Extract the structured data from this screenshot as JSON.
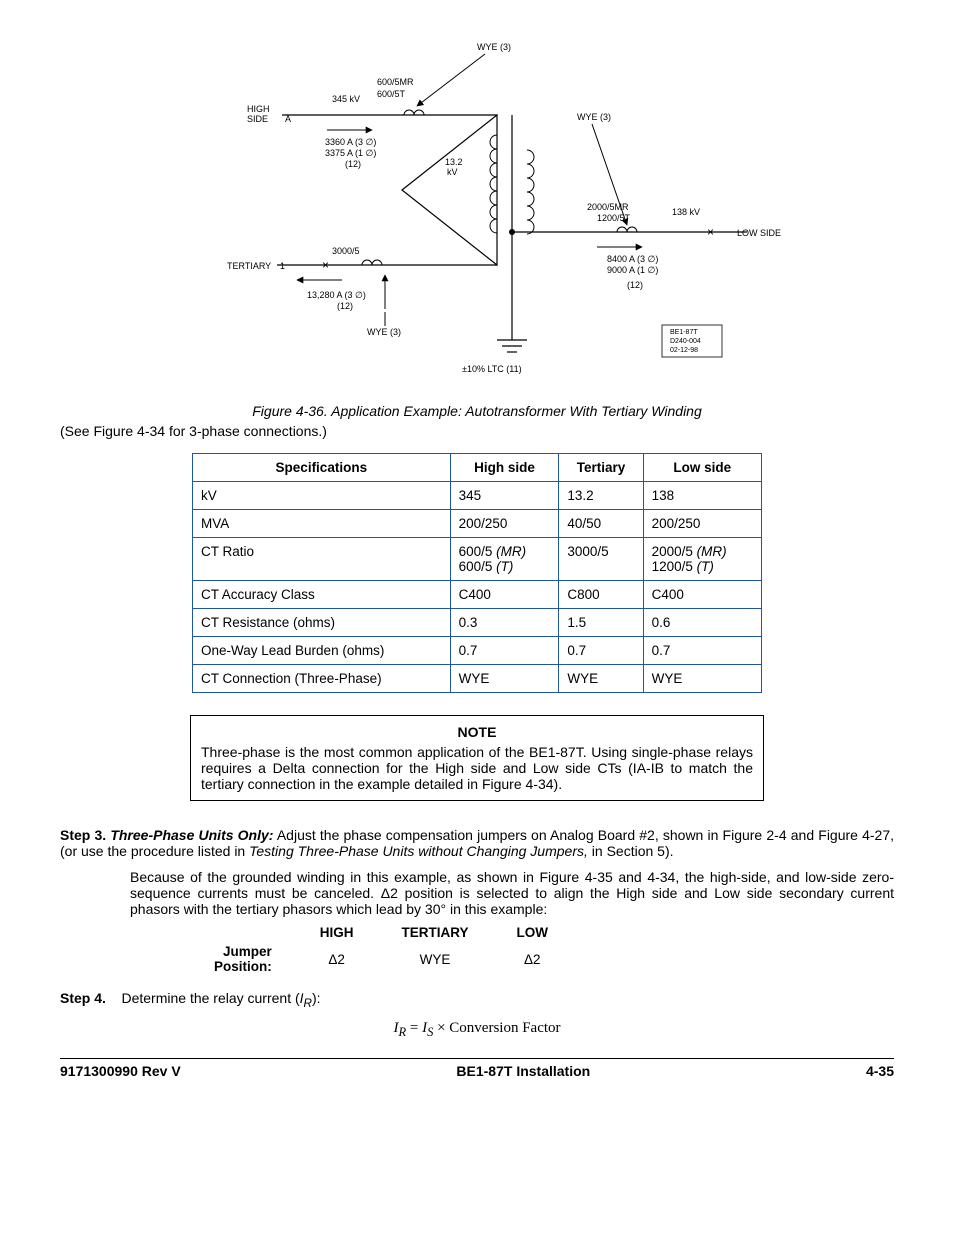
{
  "diagram": {
    "labels": {
      "wye_top": "WYE (3)",
      "wye_right": "WYE (3)",
      "wye_bottom": "WYE (3)",
      "high_side": "HIGH",
      "high_side2": "SIDE",
      "low_side": "LOW SIDE",
      "tertiary": "TERTIARY",
      "A_letter": "A",
      "one_letter": "1",
      "kv_345": "345 kV",
      "mr_600": "600/5MR",
      "t_600": "600/5T",
      "curr_3360": "3360 A (3 ∅)",
      "curr_3375": "3375 A (1 ∅)",
      "idx12a": "(12)",
      "kv_13_2a": "13.2",
      "kv_13_2b": "kV",
      "mr_2000": "2000/5MR",
      "t_1200": "1200/5T",
      "kv_138": "138 kV",
      "curr_8400": "8400 A (3 ∅)",
      "curr_9000": "9000 A (1 ∅)",
      "idx12b": "(12)",
      "ratio_3000": "3000/5",
      "curr_13280": "13,280 A (3 ∅)",
      "idx12c": "(12)",
      "ltc": "±10% LTC (11)",
      "stamp1": "BE1-87T",
      "stamp2": "D240-004",
      "stamp3": "02-12-98"
    },
    "colors": {
      "stroke": "#000000",
      "arrow_fill": "#000000"
    },
    "font_size_small": 9,
    "font_size_tiny": 7
  },
  "figure_caption": "Figure 4-36. Application Example: Autotransformer With Tertiary Winding",
  "see_note": "(See Figure 4-34 for 3-phase connections.)",
  "spec_table": {
    "headers": [
      "Specifications",
      "High side",
      "Tertiary",
      "Low side"
    ],
    "rows": [
      [
        "kV",
        "345",
        "13.2",
        "138"
      ],
      [
        "MVA",
        "200/250",
        "40/50",
        "200/250"
      ],
      [
        "CT Ratio",
        "600/5 (MR)\n600/5 (T)",
        "3000/5",
        "2000/5 (MR)\n1200/5 (T)"
      ],
      [
        "CT Accuracy Class",
        "C400",
        "C800",
        "C400"
      ],
      [
        "CT Resistance (ohms)",
        "0.3",
        "1.5",
        "0.6"
      ],
      [
        "One-Way Lead Burden (ohms)",
        "0.7",
        "0.7",
        "0.7"
      ],
      [
        "CT Connection (Three-Phase)",
        "WYE",
        "WYE",
        "WYE"
      ]
    ],
    "border_color": "#1f57a5"
  },
  "note": {
    "title": "NOTE",
    "body": "Three-phase is the most common application of the BE1-87T. Using single-phase relays requires a Delta connection for the High side and Low side CTs (IA-IB to match the tertiary connection in the example detailed in Figure 4-34)."
  },
  "step3": {
    "label": "Step 3.",
    "lead_bold": "Three-Phase Units Only:",
    "lead_rest": "  Adjust the phase compensation jumpers on Analog Board #2, shown in Figure 2-4 and Figure 4-27, (or use the procedure listed in ",
    "lead_ital": "Testing Three-Phase Units without Changing Jumpers,",
    "lead_tail": " in Section 5).",
    "para2": "Because of the grounded winding in this example, as shown in Figure 4-35 and 4-34, the high-side, and low-side zero-sequence currents must be canceled. Δ2 position is selected to align the High side and Low side secondary current phasors with the tertiary phasors which lead by 30° in this example:"
  },
  "jumper": {
    "headers": [
      "HIGH",
      "TERTIARY",
      "LOW"
    ],
    "label": "Jumper Position:",
    "values": [
      "Δ2",
      "WYE",
      "Δ2"
    ]
  },
  "step4": {
    "label": "Step 4.",
    "text": "Determine the relay current (",
    "var": "I",
    "sub": "R",
    "tail": "):"
  },
  "formula": {
    "lhs_i": "I",
    "lhs_sub": "R",
    "eq": " = ",
    "rhs_i": "I",
    "rhs_sub": "S",
    "times": " × ",
    "factor": "Conversion Factor"
  },
  "footer": {
    "left": "9171300990 Rev V",
    "center": "BE1-87T Installation",
    "right": "4-35"
  }
}
